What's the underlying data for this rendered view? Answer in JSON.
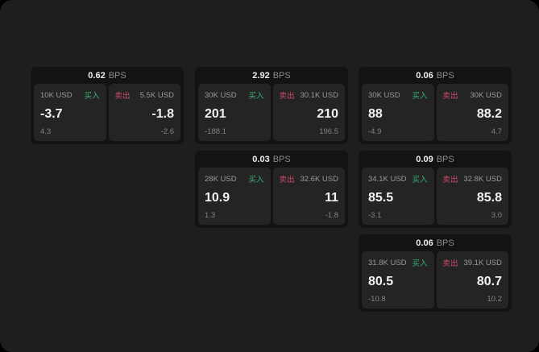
{
  "page": {
    "background": "#1e1e1e",
    "card_background": "#131313",
    "panel_background": "#242424",
    "accent_green": "#3db476",
    "accent_red": "#cf4a68"
  },
  "labels": {
    "bps": "BPS",
    "buy": "买入",
    "sell": "卖出"
  },
  "cards": [
    {
      "bps": "0.62",
      "buy": {
        "amount": "10K USD",
        "value": "-3.7",
        "sub": "4.3"
      },
      "sell": {
        "amount": "5.5K USD",
        "value": "-1.8",
        "sub": "-2.6"
      }
    },
    {
      "bps": "2.92",
      "buy": {
        "amount": "30K USD",
        "value": "201",
        "sub": "-188.1"
      },
      "sell": {
        "amount": "30.1K USD",
        "value": "210",
        "sub": "196.5"
      }
    },
    {
      "bps": "0.06",
      "buy": {
        "amount": "30K USD",
        "value": "88",
        "sub": "-4.9"
      },
      "sell": {
        "amount": "30K USD",
        "value": "88.2",
        "sub": "4.7"
      }
    },
    {
      "bps": "0.03",
      "buy": {
        "amount": "28K USD",
        "value": "10.9",
        "sub": "1.3"
      },
      "sell": {
        "amount": "32.6K USD",
        "value": "11",
        "sub": "-1.8"
      }
    },
    {
      "bps": "0.09",
      "buy": {
        "amount": "34.1K USD",
        "value": "85.5",
        "sub": "-3.1"
      },
      "sell": {
        "amount": "32.8K USD",
        "value": "85.8",
        "sub": "3.0"
      }
    },
    {
      "bps": "0.06",
      "buy": {
        "amount": "31.8K USD",
        "value": "80.5",
        "sub": "-10.8"
      },
      "sell": {
        "amount": "39.1K USD",
        "value": "80.7",
        "sub": "10.2"
      }
    }
  ]
}
